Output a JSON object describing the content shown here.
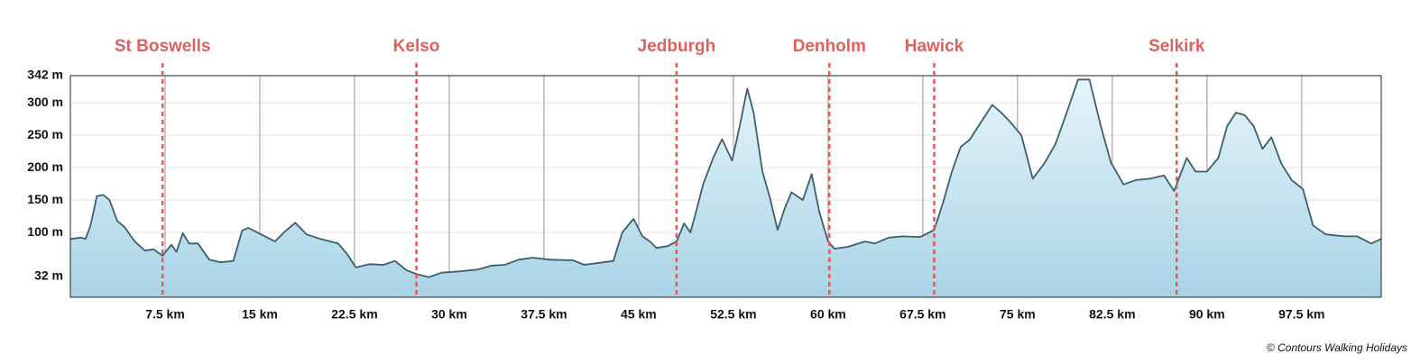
{
  "chart_data": {
    "type": "area",
    "credit": "© Contours Walking Holidays",
    "xlim": [
      0,
      103.8
    ],
    "ylim": [
      0,
      342
    ],
    "xticks": [
      {
        "value": 7.5,
        "label": "7.5 km"
      },
      {
        "value": 15,
        "label": "15 km"
      },
      {
        "value": 22.5,
        "label": "22.5 km"
      },
      {
        "value": 30,
        "label": "30 km"
      },
      {
        "value": 37.5,
        "label": "37.5 km"
      },
      {
        "value": 45,
        "label": "45 km"
      },
      {
        "value": 52.5,
        "label": "52.5 km"
      },
      {
        "value": 60,
        "label": "60 km"
      },
      {
        "value": 67.5,
        "label": "67.5 km"
      },
      {
        "value": 75,
        "label": "75 km"
      },
      {
        "value": 82.5,
        "label": "82.5 km"
      },
      {
        "value": 90,
        "label": "90 km"
      },
      {
        "value": 97.5,
        "label": "97.5 km"
      }
    ],
    "yticks": [
      {
        "value": 32,
        "label": "32 m"
      },
      {
        "value": 100,
        "label": "100 m"
      },
      {
        "value": 150,
        "label": "150 m"
      },
      {
        "value": 200,
        "label": "200 m"
      },
      {
        "value": 250,
        "label": "250 m"
      },
      {
        "value": 300,
        "label": "300 m"
      },
      {
        "value": 342,
        "label": "342 m"
      }
    ],
    "grid": true,
    "color": "#3d5f6b",
    "fill": "#b5dbe9",
    "annotation_color": "#e05a5a",
    "annotations": [
      {
        "label": "St Boswells",
        "x": 7.3
      },
      {
        "label": "Kelso",
        "x": 27.4
      },
      {
        "label": "Jedburgh",
        "x": 48.0
      },
      {
        "label": "Denholm",
        "x": 60.1
      },
      {
        "label": "Hawick",
        "x": 68.4
      },
      {
        "label": "Selkirk",
        "x": 87.6
      }
    ],
    "x": [
      0,
      0.86,
      1.2,
      1.6,
      2.1,
      2.6,
      3.1,
      3.7,
      4.3,
      5.1,
      5.9,
      6.6,
      7.3,
      8.0,
      8.4,
      8.9,
      9.4,
      10.1,
      11.0,
      11.9,
      12.9,
      13.6,
      14.1,
      15.1,
      16.2,
      16.9,
      17.8,
      18.7,
      19.8,
      21.2,
      21.9,
      22.6,
      23.7,
      24.8,
      25.7,
      26.6,
      27.4,
      28.4,
      29.4,
      30.9,
      32.3,
      33.4,
      34.4,
      35.5,
      36.6,
      38.0,
      39.8,
      40.7,
      43.0,
      43.7,
      44.6,
      45.3,
      45.9,
      46.4,
      47.3,
      48.0,
      48.6,
      49.1,
      49.6,
      50.1,
      50.9,
      51.6,
      52.4,
      53.0,
      53.6,
      54.1,
      54.8,
      55.4,
      56.0,
      56.6,
      57.1,
      58.0,
      58.7,
      59.3,
      60.0,
      60.5,
      61.6,
      62.9,
      63.7,
      64.8,
      65.9,
      67.3,
      68.4,
      69.1,
      69.8,
      70.5,
      71.2,
      71.9,
      73.0,
      73.7,
      74.4,
      75.3,
      76.2,
      77.1,
      78.0,
      78.9,
      79.8,
      80.7,
      81.6,
      82.4,
      83.4,
      84.4,
      85.5,
      86.6,
      87.4,
      88.4,
      89.1,
      90.0,
      90.9,
      91.6,
      92.3,
      93.0,
      93.7,
      94.4,
      95.1,
      95.9,
      96.7,
      97.6,
      98.4,
      99.4,
      100.9,
      101.9,
      103.0,
      103.8
    ],
    "values": [
      90,
      92,
      90,
      111,
      156,
      158,
      150,
      118,
      108,
      86,
      72,
      74,
      64,
      81,
      70,
      99,
      83,
      83,
      58,
      54,
      56,
      103,
      107,
      97,
      86,
      100,
      115,
      97,
      90,
      83,
      67,
      46,
      51,
      50,
      56,
      42,
      36,
      31,
      38,
      40,
      43,
      49,
      50,
      58,
      61,
      58,
      57,
      50,
      56,
      100,
      121,
      94,
      86,
      76,
      79,
      86,
      114,
      100,
      136,
      174,
      215,
      244,
      211,
      264,
      322,
      285,
      194,
      153,
      104,
      139,
      162,
      150,
      190,
      132,
      86,
      75,
      78,
      86,
      83,
      92,
      94,
      93,
      104,
      146,
      194,
      232,
      243,
      264,
      297,
      285,
      271,
      250,
      183,
      206,
      236,
      285,
      336,
      336,
      264,
      208,
      174,
      181,
      183,
      188,
      164,
      215,
      194,
      194,
      215,
      264,
      285,
      281,
      264,
      229,
      247,
      206,
      181,
      167,
      111,
      97,
      94,
      94,
      83,
      90
    ]
  }
}
